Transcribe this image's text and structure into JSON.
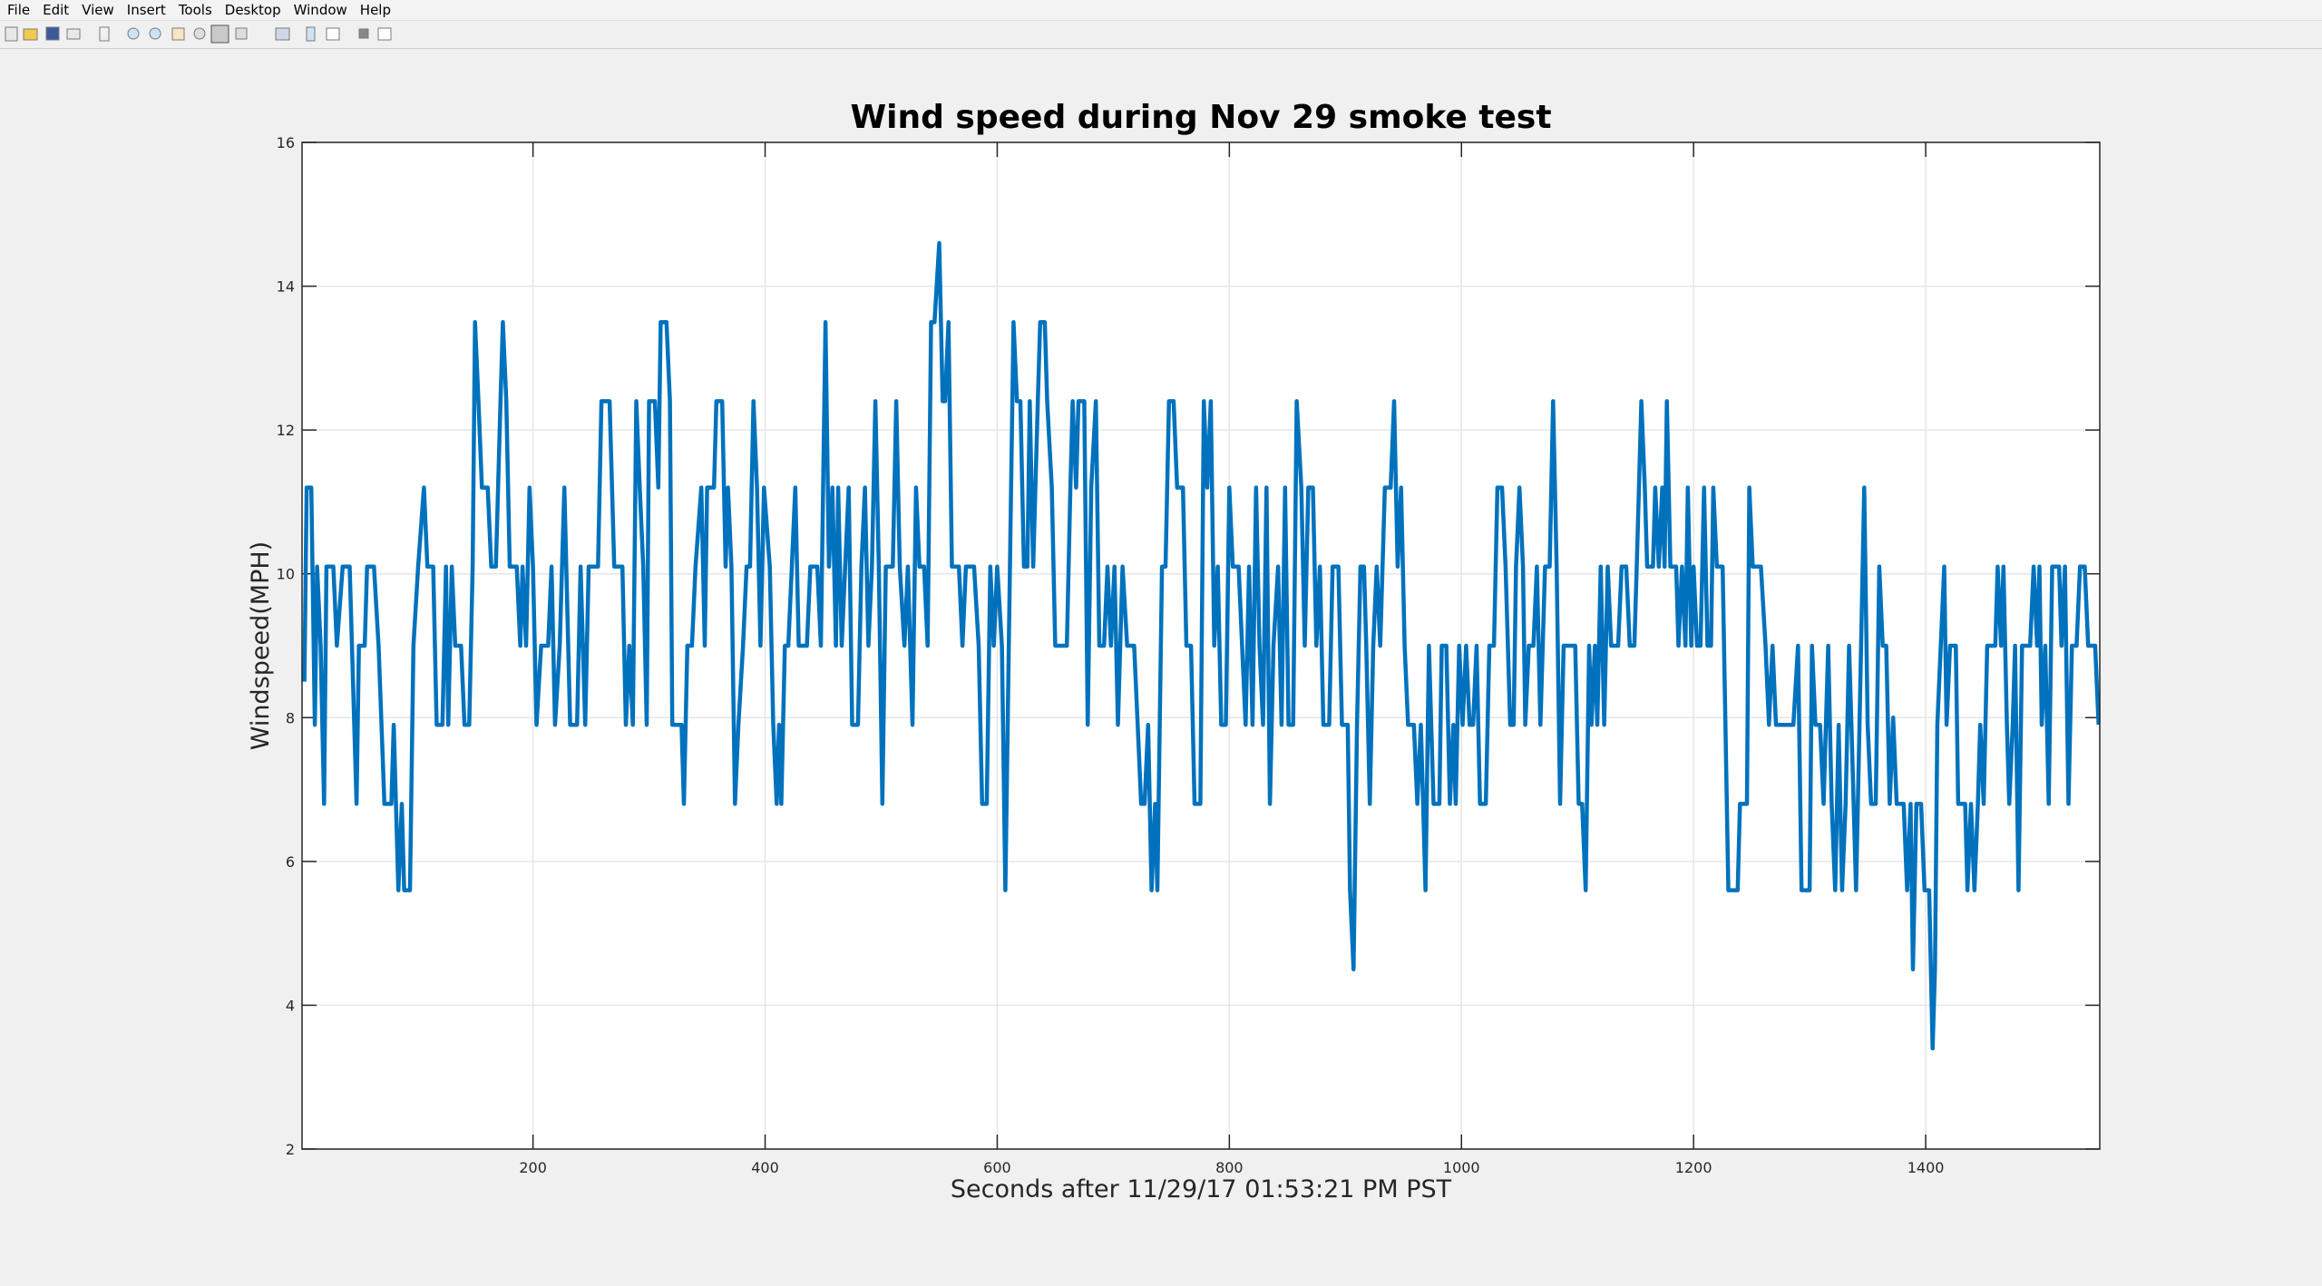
{
  "menu": [
    "File",
    "Edit",
    "View",
    "Insert",
    "Tools",
    "Desktop",
    "Window",
    "Help"
  ],
  "chart_data": {
    "type": "line",
    "title": "Wind speed during Nov 29 smoke test",
    "x_label": "Seconds after 11/29/17 01:53:21 PM PST",
    "y_label": "Windspeed(MPH)",
    "xlim": [
      1,
      1550
    ],
    "ylim": [
      2,
      16
    ],
    "xticks": [
      200,
      400,
      600,
      800,
      1000,
      1200,
      1400
    ],
    "yticks": [
      2,
      4,
      6,
      8,
      10,
      12,
      14,
      16
    ],
    "grid": true,
    "x": [
      3,
      5,
      9,
      12,
      14,
      17,
      20,
      22,
      28,
      31,
      36,
      42,
      48,
      50,
      55,
      57,
      63,
      67,
      72,
      78,
      80,
      84,
      87,
      89,
      94,
      97,
      101,
      106,
      109,
      114,
      117,
      122,
      125,
      127,
      130,
      133,
      138,
      141,
      145,
      148,
      150,
      153,
      156,
      161,
      164,
      168,
      172,
      174,
      177,
      180,
      186,
      189,
      191,
      194,
      197,
      200,
      203,
      207,
      213,
      216,
      219,
      223,
      227,
      232,
      238,
      241,
      245,
      248,
      256,
      259,
      266,
      270,
      277,
      280,
      283,
      286,
      289,
      292,
      295,
      298,
      300,
      305,
      308,
      310,
      315,
      318,
      320,
      328,
      330,
      333,
      337,
      340,
      345,
      348,
      350,
      356,
      358,
      363,
      366,
      368,
      371,
      374,
      377,
      381,
      384,
      387,
      390,
      393,
      396,
      399,
      404,
      407,
      410,
      412,
      414,
      417,
      420,
      423,
      426,
      429,
      436,
      439,
      445,
      448,
      452,
      455,
      458,
      461,
      463,
      466,
      469,
      472,
      475,
      480,
      483,
      486,
      489,
      492,
      495,
      498,
      501,
      504,
      510,
      513,
      516,
      520,
      523,
      527,
      530,
      533,
      537,
      540,
      543,
      546,
      550,
      553,
      555,
      558,
      561,
      567,
      570,
      573,
      580,
      584,
      587,
      591,
      594,
      597,
      600,
      604,
      607,
      610,
      614,
      617,
      620,
      623,
      626,
      628,
      631,
      635,
      637,
      641,
      643,
      647,
      650,
      660,
      663,
      665,
      668,
      670,
      675,
      678,
      681,
      685,
      688,
      692,
      695,
      698,
      701,
      704,
      708,
      712,
      718,
      721,
      724,
      727,
      730,
      733,
      736,
      738,
      742,
      745,
      748,
      752,
      755,
      760,
      763,
      767,
      770,
      775,
      778,
      781,
      784,
      787,
      790,
      793,
      797,
      800,
      803,
      808,
      811,
      814,
      817,
      820,
      823,
      826,
      829,
      832,
      835,
      838,
      842,
      845,
      848,
      851,
      855,
      858,
      862,
      865,
      868,
      872,
      875,
      878,
      881,
      886,
      889,
      894,
      897,
      902,
      904,
      907,
      910,
      913,
      916,
      918,
      921,
      924,
      927,
      930,
      934,
      939,
      942,
      945,
      948,
      951,
      954,
      959,
      962,
      965,
      967,
      969,
      972,
      976,
      981,
      983,
      987,
      990,
      993,
      995,
      998,
      1001,
      1004,
      1007,
      1010,
      1013,
      1016,
      1021,
      1024,
      1028,
      1031,
      1035,
      1038,
      1042,
      1045,
      1047,
      1050,
      1053,
      1055,
      1058,
      1062,
      1065,
      1068,
      1072,
      1076,
      1079,
      1082,
      1085,
      1088,
      1098,
      1101,
      1104,
      1107,
      1110,
      1112,
      1115,
      1117,
      1120,
      1123,
      1126,
      1129,
      1135,
      1138,
      1142,
      1145,
      1149,
      1151,
      1155,
      1158,
      1160,
      1165,
      1167,
      1170,
      1173,
      1175,
      1177,
      1180,
      1185,
      1187,
      1190,
      1193,
      1195,
      1198,
      1200,
      1203,
      1206,
      1209,
      1212,
      1215,
      1217,
      1220,
      1225,
      1230,
      1238,
      1240,
      1246,
      1248,
      1251,
      1258,
      1262,
      1265,
      1268,
      1271,
      1286,
      1290,
      1293,
      1300,
      1302,
      1305,
      1309,
      1312,
      1316,
      1319,
      1322,
      1325,
      1328,
      1331,
      1334,
      1336,
      1340,
      1343,
      1347,
      1350,
      1353,
      1357,
      1360,
      1363,
      1366,
      1369,
      1372,
      1375,
      1381,
      1384,
      1387,
      1389,
      1392,
      1396,
      1399,
      1403,
      1406,
      1408,
      1410,
      1413,
      1416,
      1418,
      1421,
      1426,
      1428,
      1434,
      1436,
      1439,
      1442,
      1445,
      1447,
      1450,
      1453,
      1460,
      1462,
      1465,
      1467,
      1470,
      1472,
      1475,
      1477,
      1480,
      1483,
      1490,
      1493,
      1496,
      1498,
      1500,
      1503,
      1506,
      1509,
      1515,
      1517,
      1520,
      1523,
      1526,
      1530,
      1533,
      1537,
      1540,
      1546,
      1549
    ],
    "series": [
      {
        "name": "Windspeed",
        "color": "#0072bd",
        "values": [
          8.5,
          11.2,
          11.2,
          7.9,
          10.1,
          9.0,
          6.8,
          10.1,
          10.1,
          9.0,
          10.1,
          10.1,
          6.8,
          9.0,
          9.0,
          10.1,
          10.1,
          9.0,
          6.8,
          6.8,
          7.9,
          5.6,
          6.8,
          5.6,
          5.6,
          9.0,
          10.1,
          11.2,
          10.1,
          10.1,
          7.9,
          7.9,
          10.1,
          7.9,
          10.1,
          9.0,
          9.0,
          7.9,
          7.9,
          10.1,
          13.5,
          12.4,
          11.2,
          11.2,
          10.1,
          10.1,
          12.4,
          13.5,
          12.4,
          10.1,
          10.1,
          9.0,
          10.1,
          9.0,
          11.2,
          10.1,
          7.9,
          9.0,
          9.0,
          10.1,
          7.9,
          9.0,
          11.2,
          7.9,
          7.9,
          10.1,
          7.9,
          10.1,
          10.1,
          12.4,
          12.4,
          10.1,
          10.1,
          7.9,
          9.0,
          7.9,
          12.4,
          11.2,
          10.1,
          7.9,
          12.4,
          12.4,
          11.2,
          13.5,
          13.5,
          12.4,
          7.9,
          7.9,
          6.8,
          9.0,
          9.0,
          10.1,
          11.2,
          9.0,
          11.2,
          11.2,
          12.4,
          12.4,
          10.1,
          11.2,
          10.1,
          6.8,
          7.9,
          9.0,
          10.1,
          10.1,
          12.4,
          11.2,
          9.0,
          11.2,
          10.1,
          7.9,
          6.8,
          7.9,
          6.8,
          9.0,
          9.0,
          10.1,
          11.2,
          9.0,
          9.0,
          10.1,
          10.1,
          9.0,
          13.5,
          10.1,
          11.2,
          9.0,
          11.2,
          9.0,
          10.1,
          11.2,
          7.9,
          7.9,
          10.1,
          11.2,
          9.0,
          10.1,
          12.4,
          10.1,
          6.8,
          10.1,
          10.1,
          12.4,
          10.1,
          9.0,
          10.1,
          7.9,
          11.2,
          10.1,
          10.1,
          9.0,
          13.5,
          13.5,
          14.6,
          12.4,
          12.4,
          13.5,
          10.1,
          10.1,
          9.0,
          10.1,
          10.1,
          9.0,
          6.8,
          6.8,
          10.1,
          9.0,
          10.1,
          9.0,
          5.6,
          9.0,
          13.5,
          12.4,
          12.4,
          10.1,
          10.1,
          12.4,
          10.1,
          12.4,
          13.5,
          13.5,
          12.4,
          11.2,
          9.0,
          9.0,
          11.2,
          12.4,
          11.2,
          12.4,
          12.4,
          7.9,
          11.2,
          12.4,
          9.0,
          9.0,
          10.1,
          9.0,
          10.1,
          7.9,
          10.1,
          9.0,
          9.0,
          7.9,
          6.8,
          6.8,
          7.9,
          5.6,
          6.8,
          5.6,
          10.1,
          10.1,
          12.4,
          12.4,
          11.2,
          11.2,
          9.0,
          9.0,
          6.8,
          6.8,
          12.4,
          11.2,
          12.4,
          9.0,
          10.1,
          7.9,
          7.9,
          11.2,
          10.1,
          10.1,
          9.0,
          7.9,
          10.1,
          7.9,
          11.2,
          9.0,
          7.9,
          11.2,
          6.8,
          9.0,
          10.1,
          7.9,
          11.2,
          7.9,
          7.9,
          12.4,
          11.2,
          9.0,
          11.2,
          11.2,
          9.0,
          10.1,
          7.9,
          7.9,
          10.1,
          10.1,
          7.9,
          7.9,
          5.6,
          4.5,
          7.9,
          10.1,
          10.1,
          9.0,
          6.8,
          9.0,
          10.1,
          9.0,
          11.2,
          11.2,
          12.4,
          10.1,
          11.2,
          9.0,
          7.9,
          7.9,
          6.8,
          7.9,
          6.8,
          5.6,
          9.0,
          6.8,
          6.8,
          9.0,
          9.0,
          6.8,
          7.9,
          6.8,
          9.0,
          7.9,
          9.0,
          7.9,
          7.9,
          9.0,
          6.8,
          6.8,
          9.0,
          9.0,
          11.2,
          11.2,
          10.1,
          7.9,
          7.9,
          10.1,
          11.2,
          10.1,
          7.9,
          9.0,
          9.0,
          10.1,
          7.9,
          10.1,
          10.1,
          12.4,
          10.1,
          6.8,
          9.0,
          9.0,
          6.8,
          6.8,
          5.6,
          9.0,
          7.9,
          9.0,
          7.9,
          10.1,
          7.9,
          10.1,
          9.0,
          9.0,
          10.1,
          10.1,
          9.0,
          9.0,
          10.1,
          12.4,
          11.2,
          10.1,
          10.1,
          11.2,
          10.1,
          11.2,
          10.1,
          12.4,
          10.1,
          10.1,
          9.0,
          10.1,
          9.0,
          11.2,
          9.0,
          10.1,
          9.0,
          9.0,
          11.2,
          9.0,
          9.0,
          11.2,
          10.1,
          10.1,
          5.6,
          5.6,
          6.8,
          6.8,
          11.2,
          10.1,
          10.1,
          9.0,
          7.9,
          9.0,
          7.9,
          7.9,
          9.0,
          5.6,
          5.6,
          9.0,
          7.9,
          7.9,
          6.8,
          9.0,
          6.8,
          5.6,
          7.9,
          5.6,
          6.8,
          9.0,
          7.9,
          5.6,
          7.9,
          11.2,
          7.9,
          6.8,
          6.8,
          10.1,
          9.0,
          9.0,
          6.8,
          8.0,
          6.8,
          6.8,
          5.6,
          6.8,
          4.5,
          6.8,
          6.8,
          5.6,
          5.6,
          3.4,
          4.5,
          7.9,
          9.0,
          10.1,
          7.9,
          9.0,
          9.0,
          6.8,
          6.8,
          5.6,
          6.8,
          5.6,
          6.8,
          7.9,
          6.8,
          9.0,
          9.0,
          10.1,
          9.0,
          10.1,
          7.9,
          6.8,
          7.9,
          9.0,
          5.6,
          9.0,
          9.0,
          10.1,
          9.0,
          10.1,
          7.9,
          9.0,
          6.8,
          10.1,
          10.1,
          9.0,
          10.1,
          6.8,
          9.0,
          9.0,
          10.1,
          10.1,
          9.0,
          9.0,
          7.9
        ]
      }
    ]
  }
}
